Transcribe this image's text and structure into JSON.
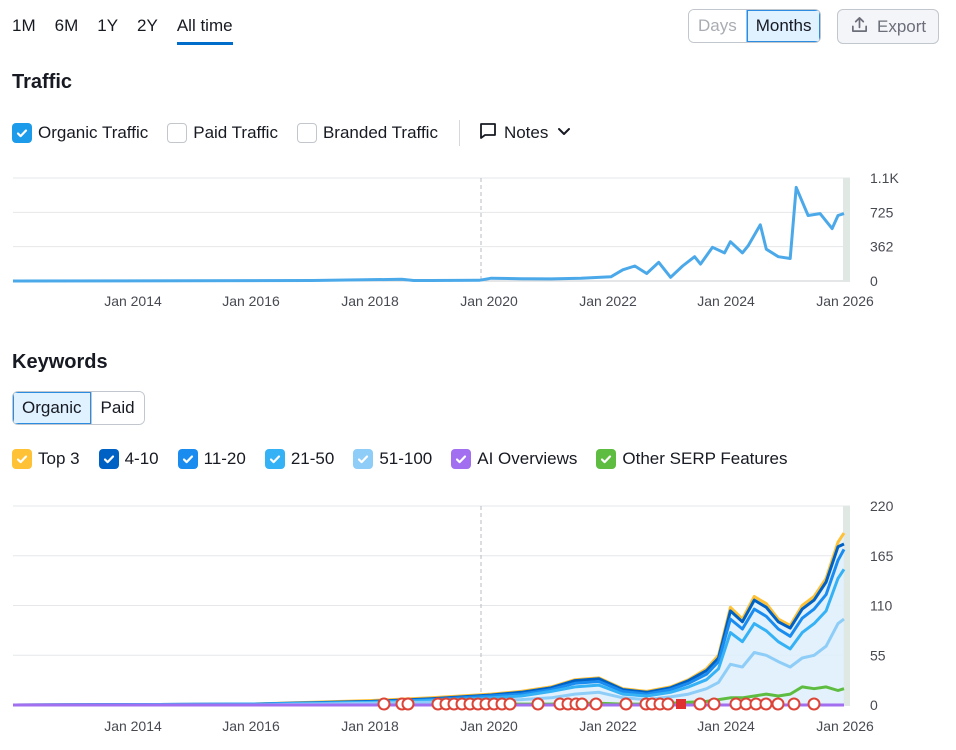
{
  "range_tabs": [
    "1M",
    "6M",
    "1Y",
    "2Y",
    "All time"
  ],
  "active_range": "All time",
  "unit_toggle": {
    "days": "Days",
    "months": "Months",
    "active": "Months"
  },
  "export_label": "Export",
  "traffic": {
    "title": "Traffic",
    "legend": [
      {
        "label": "Organic Traffic",
        "checked": true,
        "color": "#1b9bea"
      },
      {
        "label": "Paid Traffic",
        "checked": false,
        "color": "#c2c7cd"
      },
      {
        "label": "Branded Traffic",
        "checked": false,
        "color": "#c2c7cd"
      }
    ],
    "notes_label": "Notes"
  },
  "keywords": {
    "title": "Keywords",
    "toggle": {
      "organic": "Organic",
      "paid": "Paid",
      "active": "Organic"
    },
    "legend": [
      {
        "label": "Top 3",
        "color": "#ffc136"
      },
      {
        "label": "4-10",
        "color": "#0061c4"
      },
      {
        "label": "11-20",
        "color": "#1a8cf0"
      },
      {
        "label": "21-50",
        "color": "#35b1f5"
      },
      {
        "label": "51-100",
        "color": "#8ecdf8"
      },
      {
        "label": "AI Overviews",
        "color": "#a16ff0"
      },
      {
        "label": "Other SERP Features",
        "color": "#5ebd40"
      }
    ]
  },
  "chart_data": [
    {
      "type": "line",
      "name": "traffic",
      "x_ticks": [
        "Jan 2014",
        "Jan 2016",
        "Jan 2018",
        "Jan 2020",
        "Jan 2022",
        "Jan 2024",
        "Jan 2026"
      ],
      "y_ticks": [
        "1.1K",
        "725",
        "362",
        "0"
      ],
      "ylim": [
        0,
        1100
      ],
      "xlim": [
        2012.0,
        2026.0
      ],
      "series": [
        {
          "name": "Organic Traffic",
          "color": "#4ba9ea",
          "x": [
            2012.0,
            2015.0,
            2017.0,
            2018.5,
            2018.7,
            2019.0,
            2019.8,
            2020.0,
            2020.5,
            2021.0,
            2021.5,
            2022.0,
            2022.2,
            2022.4,
            2022.6,
            2022.8,
            2023.0,
            2023.2,
            2023.4,
            2023.5,
            2023.7,
            2023.9,
            2024.0,
            2024.2,
            2024.3,
            2024.5,
            2024.6,
            2024.8,
            2025.0,
            2025.1,
            2025.3,
            2025.5,
            2025.7,
            2025.8,
            2025.9
          ],
          "y": [
            0,
            2,
            5,
            18,
            5,
            5,
            8,
            30,
            25,
            22,
            30,
            45,
            120,
            160,
            80,
            200,
            40,
            160,
            260,
            180,
            360,
            300,
            420,
            300,
            380,
            600,
            340,
            260,
            240,
            1000,
            700,
            720,
            560,
            700,
            720
          ]
        }
      ]
    },
    {
      "type": "area",
      "name": "keywords",
      "x_ticks": [
        "Jan 2014",
        "Jan 2016",
        "Jan 2018",
        "Jan 2020",
        "Jan 2022",
        "Jan 2024",
        "Jan 2026"
      ],
      "y_ticks": [
        "220",
        "165",
        "110",
        "55",
        "0"
      ],
      "ylim": [
        0,
        220
      ],
      "xlim": [
        2012.0,
        2026.0
      ],
      "x": [
        2012.0,
        2016.0,
        2018.0,
        2019.0,
        2020.0,
        2020.5,
        2021.0,
        2021.4,
        2021.8,
        2022.2,
        2022.6,
        2023.0,
        2023.3,
        2023.6,
        2023.8,
        2024.0,
        2024.2,
        2024.4,
        2024.6,
        2024.8,
        2025.0,
        2025.2,
        2025.4,
        2025.6,
        2025.8,
        2025.9
      ],
      "series": [
        {
          "name": "Top 3",
          "color": "#ffc136",
          "values": [
            0,
            1,
            5,
            8,
            12,
            15,
            20,
            28,
            30,
            18,
            15,
            20,
            28,
            40,
            55,
            108,
            95,
            120,
            112,
            95,
            88,
            110,
            120,
            140,
            180,
            190
          ]
        },
        {
          "name": "4-10",
          "color": "#0061c4",
          "values": [
            0,
            1,
            4,
            7,
            11,
            14,
            19,
            27,
            29,
            17,
            14,
            19,
            27,
            38,
            52,
            104,
            92,
            116,
            108,
            92,
            85,
            106,
            116,
            136,
            175,
            178
          ]
        },
        {
          "name": "11-20",
          "color": "#1a8cf0",
          "values": [
            0,
            1,
            3,
            6,
            10,
            12,
            17,
            24,
            26,
            15,
            12,
            17,
            24,
            34,
            48,
            95,
            84,
            106,
            98,
            84,
            76,
            96,
            106,
            122,
            160,
            172
          ]
        },
        {
          "name": "21-50",
          "color": "#35b1f5",
          "values": [
            0,
            1,
            3,
            5,
            8,
            10,
            15,
            20,
            22,
            12,
            10,
            14,
            20,
            28,
            40,
            80,
            70,
            90,
            82,
            70,
            62,
            80,
            90,
            104,
            140,
            150
          ]
        },
        {
          "name": "51-100",
          "color": "#8ecdf8",
          "values": [
            0,
            0,
            2,
            3,
            5,
            6,
            8,
            12,
            14,
            8,
            6,
            9,
            12,
            18,
            25,
            45,
            42,
            58,
            55,
            48,
            42,
            52,
            55,
            65,
            90,
            95
          ]
        },
        {
          "name": "Other SERP Features",
          "color": "#5ebd40",
          "values": [
            0,
            0,
            0,
            0,
            1,
            1,
            1,
            2,
            2,
            1,
            1,
            2,
            3,
            4,
            6,
            8,
            8,
            10,
            12,
            10,
            12,
            20,
            18,
            20,
            16,
            18
          ]
        },
        {
          "name": "AI Overviews",
          "color": "#a16ff0",
          "values": [
            0,
            0,
            0,
            0,
            0,
            0,
            0,
            0,
            0,
            0,
            0,
            0,
            0,
            0,
            0,
            0,
            0,
            0,
            0,
            0,
            0,
            0,
            0,
            0,
            0,
            0
          ]
        }
      ]
    }
  ]
}
